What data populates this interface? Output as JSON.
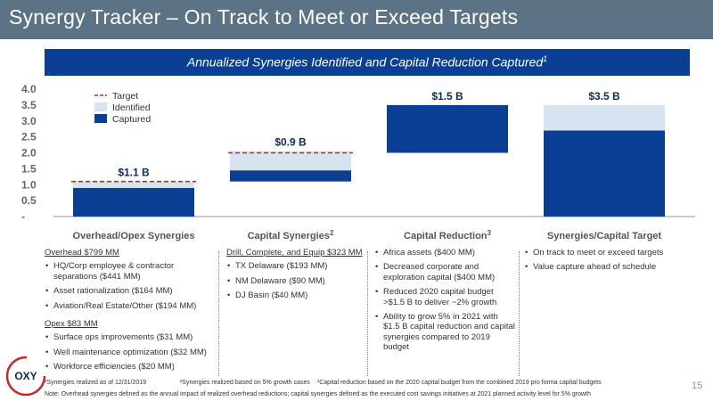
{
  "title": "Synergy Tracker – On Track to Meet or Exceed Targets",
  "banner": {
    "text": "Annualized Synergies Identified and Capital Reduction Captured",
    "sup": "1"
  },
  "chart_data": {
    "type": "bar",
    "stacked": true,
    "ylim": [
      0,
      4.0
    ],
    "yticks": [
      "4.0",
      "3.5",
      "3.0",
      "2.5",
      "2.0",
      "1.5",
      "1.0",
      "0.5",
      "-"
    ],
    "ytick_values": [
      4.0,
      3.5,
      3.0,
      2.5,
      2.0,
      1.5,
      1.0,
      0.5,
      0
    ],
    "categories": [
      {
        "label": "Overhead/Opex Synergies",
        "sup": ""
      },
      {
        "label": "Capital Synergies",
        "sup": "2"
      },
      {
        "label": "Capital Reduction",
        "sup": "3"
      },
      {
        "label": "Synergies/Capital Target",
        "sup": ""
      }
    ],
    "bars": [
      {
        "base": 0,
        "captured": 0.9,
        "identified": 0.2,
        "target": 1.1,
        "label": "$1.1 B"
      },
      {
        "base": 1.1,
        "captured": 0.35,
        "identified": 0.6,
        "target": 2.0,
        "label": "$0.9 B"
      },
      {
        "base": 2.0,
        "captured": 1.5,
        "identified": 0,
        "target": 3.5,
        "label": "$1.5 B"
      },
      {
        "base": 0,
        "captured": 2.7,
        "identified": 0.8,
        "target": 3.5,
        "label": "$3.5 B"
      }
    ],
    "legend": [
      "Target",
      "Identified",
      "Captured"
    ],
    "legend_position": "top-left",
    "grid": false,
    "colors": {
      "captured": "#0b3f94",
      "identified": "#d6e3f1",
      "target": "#c62828",
      "label": "#0d2a55"
    }
  },
  "columns": {
    "col1": {
      "head": "Overhead $799 MM",
      "items": [
        "HQ/Corp employee & contractor separations ($441 MM)",
        "Asset rationalization ($164 MM)",
        "Aviation/Real Estate/Other ($194 MM)"
      ],
      "head2": "Opex $83 MM",
      "items2": [
        "Surface ops improvements ($31 MM)",
        "Well maintenance optimization ($32 MM)",
        "Workforce efficiencies ($20 MM)"
      ]
    },
    "col2": {
      "head": "Drill, Complete, and Equip $323 MM",
      "items": [
        "TX Delaware ($193 MM)",
        "NM Delaware ($90 MM)",
        "DJ Basin ($40 MM)"
      ]
    },
    "col3": {
      "items": [
        "Africa assets ($400 MM)",
        "Decreased corporate and exploration capital ($400 MM)",
        "Reduced 2020 capital budget >$1.5 B to deliver ~2% growth",
        "Ability to grow 5% in 2021 with $1.5 B capital reduction and capital synergies compared to 2019 budget"
      ]
    },
    "col4": {
      "items": [
        "On track to meet or exceed targets",
        "Value capture ahead of schedule"
      ]
    }
  },
  "logo_text": "OXY",
  "footnotes": {
    "f1": "¹Synergies realized as of 12/31/2019",
    "f2": "²Synergies realized based on 5% growth cases",
    "f3": "³Capital reduction based on the 2020 capital budget from the combined 2019 pro forma capital budgets",
    "note": "Note: Overhead synergies defined as the annual impact of realized overhead reductions; capital synergies defined as the executed cost savings initiatives at 2021 planned activity level for 5% growth"
  },
  "page_number": "15"
}
